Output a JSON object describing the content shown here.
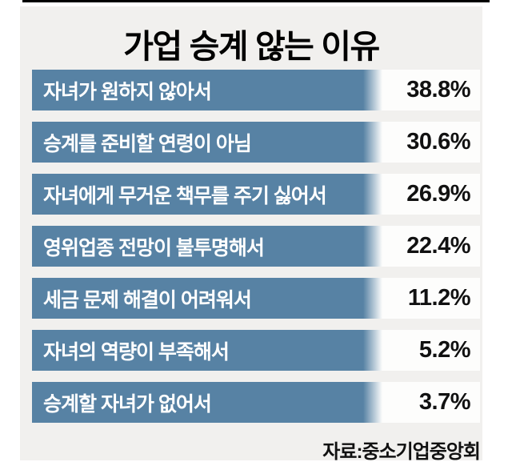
{
  "title": "가업 승계 않는 이유",
  "source": "자료:중소기업중앙회",
  "colors": {
    "bar": "#5782a4",
    "panel_bg": "#f1f0ee",
    "row_bg": "#fdfdfc",
    "bar_label_text": "#ffffff",
    "value_text": "#111111",
    "title_text": "#000000",
    "top_line": "#000000"
  },
  "chart_data": {
    "type": "bar",
    "orientation": "horizontal",
    "title": "가업 승계 않는 이유",
    "categories": [
      "자녀가 원하지 않아서",
      "승계를 준비할 연령이 아님",
      "자녀에게 무거운 책무를 주기 싫어서",
      "영위업종 전망이 불투명해서",
      "세금 문제 해결이 어려워서",
      "자녀의 역량이 부족해서",
      "승계할 자녀가 없어서"
    ],
    "values": [
      38.8,
      30.6,
      26.9,
      22.4,
      11.2,
      5.2,
      3.7
    ],
    "value_labels": [
      "38.8%",
      "30.6%",
      "26.9%",
      "22.4%",
      "11.2%",
      "5.2%",
      "3.7%"
    ],
    "unit": "%",
    "grid": false,
    "legend": false,
    "bar_style": "equal-length decorative bars with value labels at right",
    "source": "자료:중소기업중앙회"
  }
}
